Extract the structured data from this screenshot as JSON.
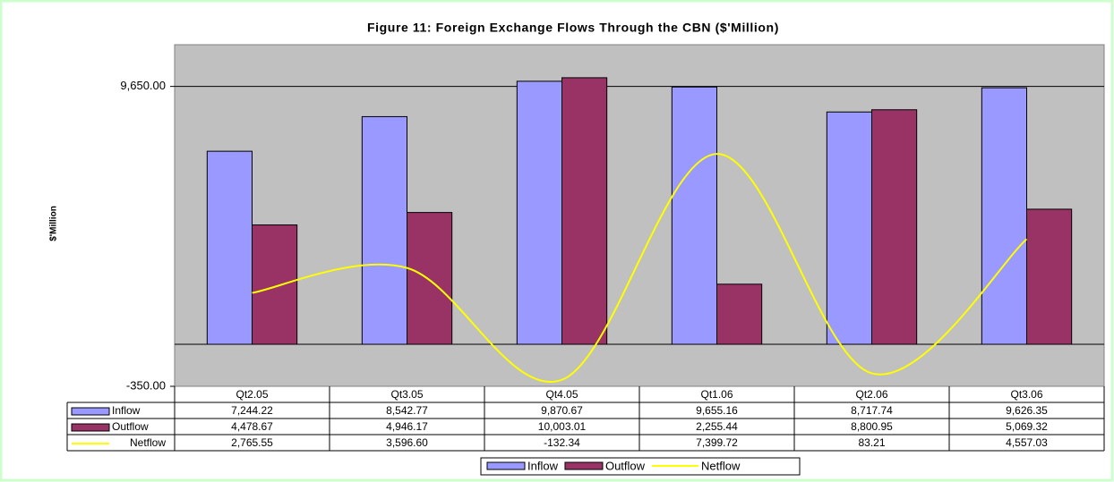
{
  "chart_data": {
    "type": "bar",
    "title": "Figure 11: Foreign Exchange Flows Through the CBN ($'Million)",
    "y_axis_label": "$'Million",
    "categories": [
      "Qt2.05",
      "Qt3.05",
      "Qt4.05",
      "Qt1.06",
      "Qt2.06",
      "Qt3.06"
    ],
    "series": [
      {
        "name": "Inflow",
        "type": "bar",
        "axis": "y2",
        "color": "#9999ff",
        "values": [
          7244.22,
          8542.77,
          9870.67,
          9655.16,
          8717.74,
          9626.35
        ],
        "value_labels": [
          "7,244.22",
          "8,542.77",
          "9,870.67",
          "9,655.16",
          "8,717.74",
          "9,626.35"
        ]
      },
      {
        "name": "Outflow",
        "type": "bar",
        "axis": "y2",
        "color": "#993366",
        "values": [
          4478.67,
          4946.17,
          10003.01,
          2255.44,
          8800.95,
          5069.32
        ],
        "value_labels": [
          "4,478.67",
          "4,946.17",
          "10,003.01",
          "2,255.44",
          "8,800.95",
          "5,069.32"
        ]
      },
      {
        "name": "Netflow",
        "type": "line",
        "color": "#ffff00",
        "values": [
          2765.55,
          3596.6,
          -132.34,
          7399.72,
          83.21,
          4557.03
        ],
        "value_labels": [
          "2,765.55",
          "3,596.60",
          "-132.34",
          "7,399.72",
          "83.21",
          "4,557.03"
        ]
      }
    ],
    "ylim": [
      -350,
      11040
    ],
    "yticks": [
      {
        "value": 9650,
        "label": "9,650.00"
      },
      {
        "value": -350,
        "label": "-350.00"
      }
    ],
    "y2lim": [
      -1577,
      11242
    ],
    "grid": true,
    "legend": "bottom"
  }
}
